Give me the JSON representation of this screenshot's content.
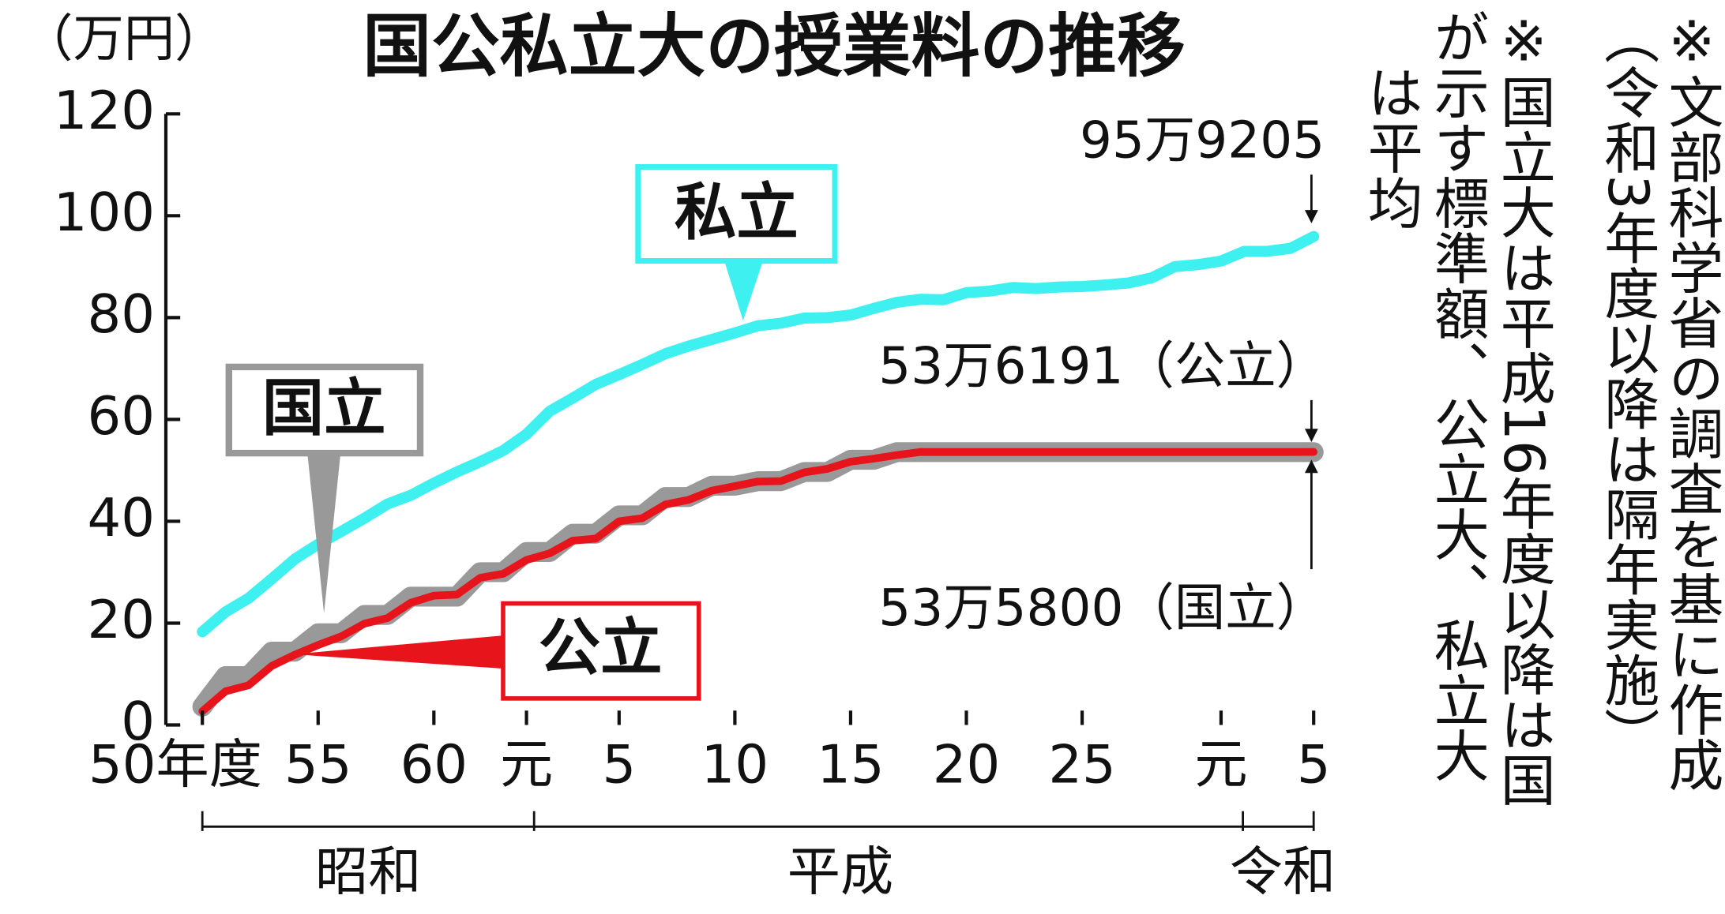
{
  "chart_data": {
    "type": "line",
    "title": "国公私立大の授業料の推移",
    "unit_label": "（万円）",
    "categories": [
      "50年度",
      null,
      null,
      null,
      null,
      "55",
      null,
      null,
      null,
      null,
      "60",
      null,
      null,
      null,
      "元",
      null,
      null,
      null,
      "5",
      null,
      null,
      null,
      null,
      "10",
      null,
      null,
      null,
      null,
      "15",
      null,
      null,
      null,
      null,
      "20",
      null,
      null,
      null,
      null,
      "25",
      null,
      null,
      null,
      null,
      null,
      "元",
      null,
      null,
      null,
      "5"
    ],
    "eras": [
      "昭和",
      "平成",
      "令和"
    ],
    "ylim": [
      0,
      120
    ],
    "yticks": [
      0,
      20,
      40,
      60,
      80,
      100,
      120
    ],
    "series": [
      {
        "name": "私立",
        "color": "#3ff0f0",
        "values": [
          18.3,
          22.2,
          24.9,
          28.7,
          32.6,
          35.5,
          38.0,
          40.6,
          43.4,
          45.1,
          47.5,
          49.7,
          51.7,
          53.9,
          57.1,
          61.6,
          64.2,
          66.9,
          68.8,
          70.8,
          72.9,
          74.4,
          75.7,
          77.0,
          78.4,
          78.9,
          79.9,
          80.0,
          80.5,
          81.8,
          83.0,
          83.6,
          83.5,
          84.9,
          85.2,
          85.9,
          85.7,
          86.0,
          86.1,
          86.4,
          86.8,
          87.8,
          90.0,
          90.4,
          91.1,
          93.0,
          93.0,
          93.6,
          95.9205
        ]
      },
      {
        "name": "国立",
        "color": "#999999",
        "values": [
          3.6,
          9.6,
          9.6,
          14.4,
          14.4,
          18.0,
          18.0,
          21.6,
          21.6,
          25.2,
          25.2,
          25.2,
          30.0,
          30.0,
          33.96,
          33.96,
          37.56,
          37.56,
          41.16,
          41.16,
          44.76,
          44.76,
          46.98,
          46.98,
          47.88,
          47.88,
          49.68,
          49.68,
          52.08,
          52.08,
          53.58,
          53.58,
          53.58,
          53.58,
          53.58,
          53.58,
          53.58,
          53.58,
          53.58,
          53.58,
          53.58,
          53.58,
          53.58,
          53.58,
          53.58,
          53.58,
          53.58,
          53.58,
          53.58
        ]
      },
      {
        "name": "公立",
        "color": "#e8141c",
        "values": [
          2.7,
          6.6,
          7.8,
          11.6,
          13.8,
          15.7,
          17.4,
          19.9,
          21.0,
          24.0,
          25.4,
          25.6,
          28.9,
          29.7,
          32.4,
          33.7,
          36.2,
          36.6,
          40.0,
          40.6,
          43.3,
          44.2,
          46.0,
          46.9,
          47.8,
          47.9,
          49.6,
          50.3,
          51.7,
          52.3,
          53.0,
          53.6,
          53.6,
          53.6,
          53.6,
          53.6,
          53.6,
          53.6,
          53.6,
          53.6,
          53.6,
          53.6,
          53.6,
          53.6,
          53.6,
          53.6,
          53.6,
          53.6,
          53.6191
        ]
      }
    ],
    "annotations": [
      "95万9205",
      "53万6191（公立）",
      "53万5800（国立）"
    ],
    "notes": [
      [
        "※文部科学省の調査を基に作成",
        "（令和3年度以降は隔年実施）"
      ],
      [
        "※国立大は平成16年度以降は国",
        "が示す標準額、公立大、私立大",
        "は平均"
      ]
    ]
  }
}
